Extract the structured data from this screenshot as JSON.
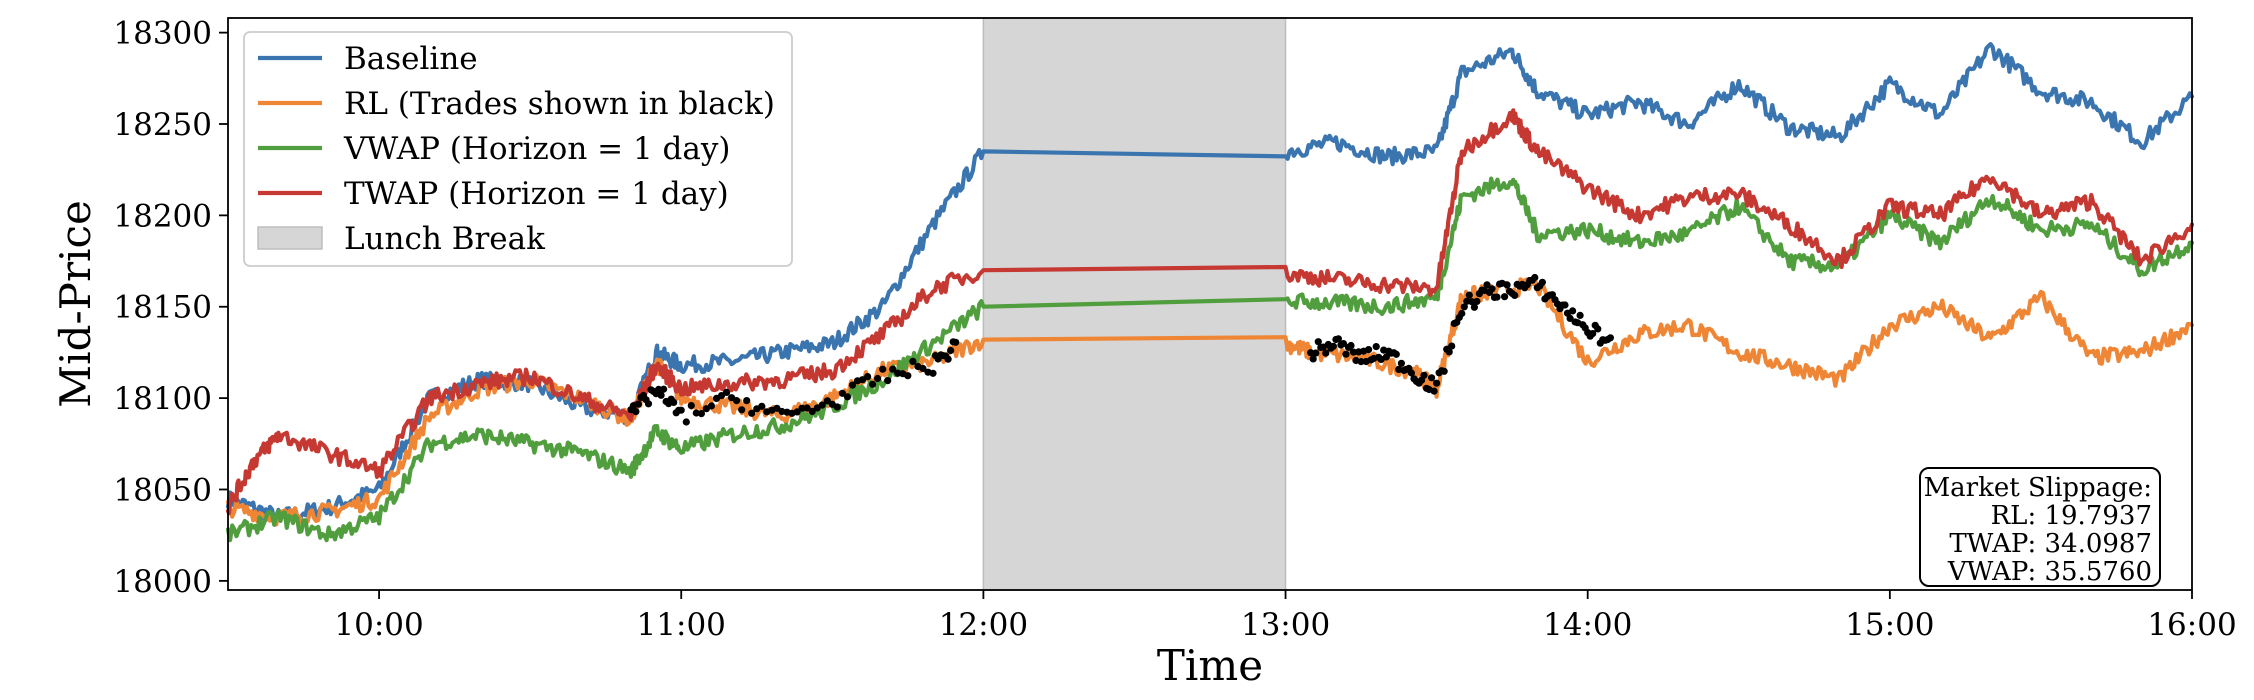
{
  "chart_data": {
    "type": "line",
    "title": "",
    "xlabel": "Time",
    "ylabel": "Mid-Price",
    "xlim": [
      "09:30",
      "16:00"
    ],
    "ylim": [
      17995,
      18308
    ],
    "x_ticks": [
      "10:00",
      "11:00",
      "12:00",
      "13:00",
      "14:00",
      "15:00",
      "16:00"
    ],
    "y_ticks": [
      18000,
      18050,
      18100,
      18150,
      18200,
      18250,
      18300
    ],
    "grid": false,
    "legend_position": "top-left",
    "lunch_break": {
      "start": "12:00",
      "end": "13:00",
      "label": "Lunch Break",
      "color": "#d6d6d6"
    },
    "trades_label": "RL trades",
    "series": [
      {
        "name": "Baseline",
        "color": "#3b75af",
        "x": [
          "09:30",
          "09:40",
          "09:50",
          "10:00",
          "10:10",
          "10:20",
          "10:30",
          "10:40",
          "10:50",
          "10:55",
          "11:00",
          "11:10",
          "11:20",
          "11:30",
          "11:40",
          "11:50",
          "12:00",
          "13:00",
          "13:10",
          "13:20",
          "13:30",
          "13:35",
          "13:45",
          "13:50",
          "14:00",
          "14:10",
          "14:20",
          "14:30",
          "14:40",
          "14:50",
          "15:00",
          "15:10",
          "15:20",
          "15:30",
          "15:40",
          "15:50",
          "16:00"
        ],
        "y": [
          18045,
          18035,
          18040,
          18050,
          18100,
          18110,
          18108,
          18095,
          18090,
          18125,
          18118,
          18120,
          18125,
          18130,
          18150,
          18195,
          18235,
          18235,
          18240,
          18232,
          18235,
          18278,
          18290,
          18268,
          18255,
          18262,
          18250,
          18272,
          18248,
          18243,
          18272,
          18255,
          18292,
          18268,
          18262,
          18240,
          18265
        ]
      },
      {
        "name": "RL (Trades shown in black)",
        "color": "#ef8636",
        "x": [
          "09:30",
          "09:40",
          "09:50",
          "10:00",
          "10:10",
          "10:20",
          "10:30",
          "10:40",
          "10:50",
          "10:55",
          "11:00",
          "11:10",
          "11:20",
          "11:30",
          "11:40",
          "11:50",
          "12:00",
          "13:00",
          "13:05",
          "13:15",
          "13:25",
          "13:30",
          "13:35",
          "13:40",
          "13:50",
          "14:00",
          "14:10",
          "14:20",
          "14:30",
          "14:40",
          "14:50",
          "15:00",
          "15:10",
          "15:20",
          "15:30",
          "15:40",
          "15:50",
          "16:00"
        ],
        "y": [
          18040,
          18035,
          18038,
          18045,
          18090,
          18105,
          18110,
          18100,
          18088,
          18120,
          18100,
          18095,
          18090,
          18100,
          18115,
          18120,
          18132,
          18130,
          18125,
          18122,
          18115,
          18105,
          18155,
          18158,
          18162,
          18120,
          18135,
          18140,
          18125,
          18118,
          18110,
          18140,
          18150,
          18132,
          18155,
          18122,
          18125,
          18140
        ]
      },
      {
        "name": "VWAP (Horizon = 1 day)",
        "color": "#519e3e",
        "x": [
          "09:30",
          "09:40",
          "09:50",
          "10:00",
          "10:10",
          "10:20",
          "10:30",
          "10:40",
          "10:50",
          "10:55",
          "11:00",
          "11:10",
          "11:20",
          "11:30",
          "11:40",
          "11:50",
          "12:00",
          "13:00",
          "13:10",
          "13:20",
          "13:30",
          "13:35",
          "13:45",
          "13:50",
          "14:00",
          "14:10",
          "14:20",
          "14:30",
          "14:40",
          "14:50",
          "15:00",
          "15:10",
          "15:20",
          "15:30",
          "15:40",
          "15:50",
          "16:00"
        ],
        "y": [
          18025,
          18035,
          18025,
          18035,
          18075,
          18080,
          18075,
          18070,
          18060,
          18082,
          18072,
          18080,
          18085,
          18095,
          18110,
          18130,
          18150,
          18153,
          18152,
          18150,
          18155,
          18210,
          18220,
          18190,
          18192,
          18185,
          18190,
          18205,
          18175,
          18172,
          18200,
          18185,
          18210,
          18192,
          18195,
          18170,
          18185
        ]
      },
      {
        "name": "TWAP (Horizon = 1 day)",
        "color": "#c53932",
        "x": [
          "09:30",
          "09:35",
          "09:40",
          "09:50",
          "10:00",
          "10:10",
          "10:20",
          "10:30",
          "10:40",
          "10:50",
          "10:55",
          "11:00",
          "11:10",
          "11:20",
          "11:30",
          "11:40",
          "11:50",
          "12:00",
          "13:00",
          "13:10",
          "13:20",
          "13:30",
          "13:35",
          "13:45",
          "13:50",
          "14:00",
          "14:10",
          "14:20",
          "14:30",
          "14:40",
          "14:50",
          "15:00",
          "15:10",
          "15:20",
          "15:30",
          "15:40",
          "15:50",
          "16:00"
        ],
        "y": [
          18040,
          18065,
          18080,
          18070,
          18060,
          18100,
          18108,
          18112,
          18100,
          18090,
          18118,
          18105,
          18108,
          18110,
          18115,
          18135,
          18160,
          18170,
          18168,
          18165,
          18162,
          18160,
          18235,
          18255,
          18235,
          18215,
          18200,
          18210,
          18212,
          18195,
          18175,
          18205,
          18200,
          18222,
          18200,
          18208,
          18175,
          18195
        ]
      }
    ],
    "trades": [
      {
        "x": [
          "10:50",
          "10:55",
          "11:00",
          "11:10",
          "11:20",
          "11:30",
          "11:40",
          "11:50",
          "11:55"
        ],
        "y": [
          18090,
          18105,
          18090,
          18100,
          18090,
          18098,
          18112,
          18118,
          18130
        ]
      },
      {
        "x": [
          "13:05",
          "13:10",
          "13:15",
          "13:20",
          "13:25",
          "13:30",
          "13:35",
          "13:40",
          "13:45",
          "13:50",
          "13:55",
          "14:00",
          "14:05"
        ],
        "y": [
          18125,
          18130,
          18122,
          18125,
          18115,
          18105,
          18150,
          18158,
          18160,
          18162,
          18150,
          18138,
          18130
        ]
      }
    ],
    "annotation": {
      "lines": [
        "Market Slippage:",
        "RL: 19.7937",
        "TWAP: 34.0987",
        "VWAP: 35.5760"
      ],
      "position": "bottom-right"
    }
  }
}
